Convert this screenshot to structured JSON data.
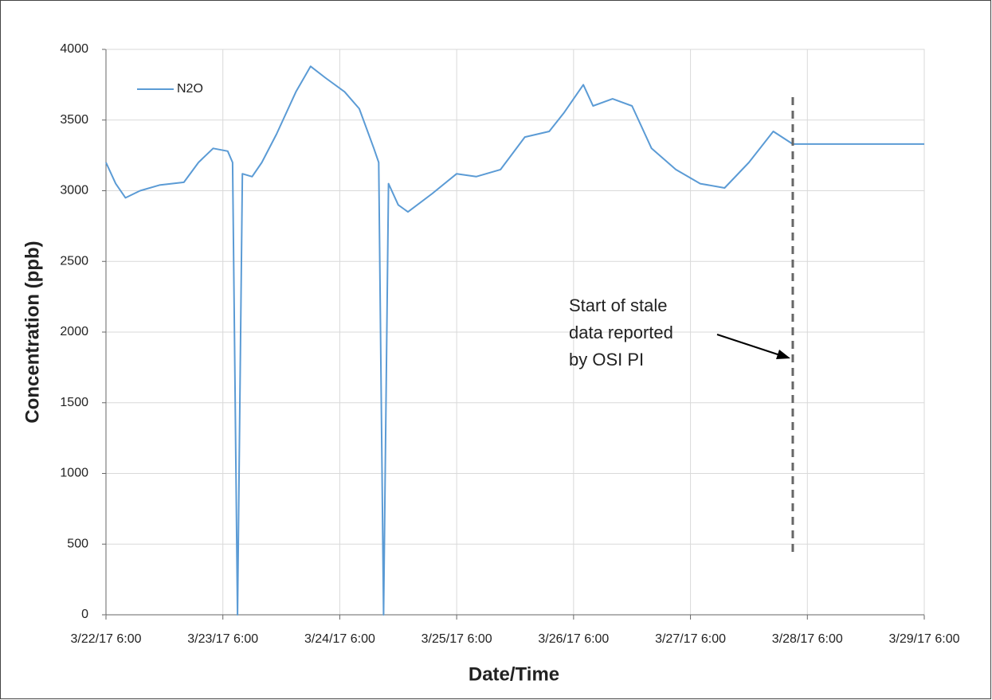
{
  "chart_data": {
    "type": "line",
    "xlabel": "Date/Time",
    "ylabel": "Concentration (ppb)",
    "xlim": [
      "3/22/17 6:00",
      "3/29/17 6:00"
    ],
    "xticks": [
      "3/22/17 6:00",
      "3/23/17 6:00",
      "3/24/17 6:00",
      "3/25/17 6:00",
      "3/26/17 6:00",
      "3/27/17 6:00",
      "3/28/17 6:00",
      "3/29/17 6:00"
    ],
    "ylim": [
      0,
      4000
    ],
    "yticks": [
      0,
      500,
      1000,
      1500,
      2000,
      2500,
      3000,
      3500,
      4000
    ],
    "grid": true,
    "legend": "upper left",
    "x": [
      "3/22/17 6:00",
      "3/22/17 8:00",
      "3/22/17 10:00",
      "3/22/17 13:00",
      "3/22/17 17:00",
      "3/22/17 22:00",
      "3/23/17 1:00",
      "3/23/17 4:00",
      "3/23/17 7:00",
      "3/23/17 8:00",
      "3/23/17 9:00",
      "3/23/17 10:00",
      "3/23/17 12:00",
      "3/23/17 14:00",
      "3/23/17 17:00",
      "3/23/17 21:00",
      "3/24/17 0:00",
      "3/24/17 3:00",
      "3/24/17 7:00",
      "3/24/17 10:00",
      "3/24/17 13:00",
      "3/24/17 14:00",
      "3/24/17 15:00",
      "3/24/17 16:00",
      "3/24/17 18:00",
      "3/24/17 20:00",
      "3/25/17 1:00",
      "3/25/17 6:00",
      "3/25/17 10:00",
      "3/25/17 15:00",
      "3/25/17 20:00",
      "3/26/17 1:00",
      "3/26/17 4:00",
      "3/26/17 8:00",
      "3/26/17 10:00",
      "3/26/17 14:00",
      "3/26/17 18:00",
      "3/26/17 22:00",
      "3/27/17 3:00",
      "3/27/17 8:00",
      "3/27/17 13:00",
      "3/27/17 18:00",
      "3/27/17 23:00",
      "3/28/17 3:00",
      "3/29/17 6:00"
    ],
    "series": [
      {
        "name": "N2O",
        "color": "#5b9bd5",
        "values": [
          3200,
          3050,
          2950,
          3000,
          3040,
          3060,
          3200,
          3300,
          3280,
          3200,
          0,
          3120,
          3100,
          3200,
          3400,
          3700,
          3880,
          3800,
          3700,
          3580,
          3300,
          3200,
          0,
          3050,
          2900,
          2850,
          2980,
          3120,
          3100,
          3150,
          3380,
          3420,
          3550,
          3750,
          3600,
          3650,
          3600,
          3300,
          3150,
          3050,
          3020,
          3200,
          3420,
          3330,
          3330
        ]
      }
    ],
    "annotation": {
      "lines": [
        "Start of stale",
        "data reported",
        "by OSI PI"
      ],
      "x": "3/28/17 3:00"
    }
  }
}
